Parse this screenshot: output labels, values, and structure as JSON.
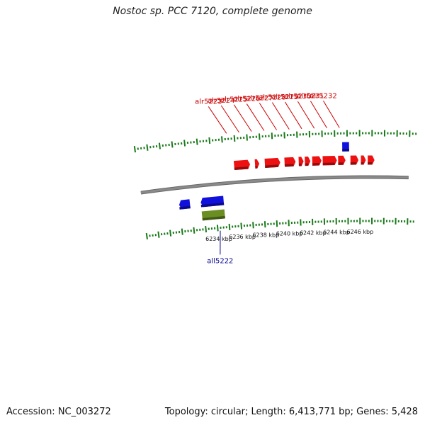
{
  "title": "Nostoc sp. PCC 7120, complete genome",
  "accession_text": "Accession: NC_003272",
  "summary_text": "Topology: circular; Length: 6,413,771 bp; Genes: 5,428",
  "colors": {
    "backbone": "#8a8a8a",
    "tick": "#1a7a1a",
    "forward_gene": "#ee1111",
    "reverse_gene": "#1111dd",
    "other_feature": "#6b8e23",
    "forward_label": "#cc0000",
    "reverse_label": "#00008b"
  },
  "axis": {
    "unit": "kbp",
    "tick_labels": [
      {
        "kbp": 6234,
        "text": "6234 kbp"
      },
      {
        "kbp": 6236,
        "text": "6236 kbp"
      },
      {
        "kbp": 6238,
        "text": "6238 kbp"
      },
      {
        "kbp": 6240,
        "text": "6240 kbp"
      },
      {
        "kbp": 6242,
        "text": "6242 kbp"
      },
      {
        "kbp": 6244,
        "text": "6244 kbp"
      },
      {
        "kbp": 6246,
        "text": "6246 kbp"
      }
    ]
  },
  "features": [
    {
      "track": "reverse-outer",
      "color": "reverse_gene",
      "start": 6231.0,
      "end": 6231.9,
      "dir": "rev"
    },
    {
      "track": "reverse-outer",
      "color": "reverse_gene",
      "start": 6232.8,
      "end": 6234.7,
      "dir": "rev"
    },
    {
      "track": "reverse-inner",
      "color": "other_feature",
      "start": 6232.8,
      "end": 6234.7,
      "dir": "none"
    },
    {
      "track": "forward-inner",
      "color": "forward_gene",
      "start": 6235.8,
      "end": 6237.1,
      "dir": "fwd"
    },
    {
      "track": "forward-inner",
      "color": "forward_gene",
      "start": 6237.5,
      "end": 6237.85,
      "dir": "fwd"
    },
    {
      "track": "forward-inner",
      "color": "forward_gene",
      "start": 6238.3,
      "end": 6239.55,
      "dir": "fwd"
    },
    {
      "track": "forward-inner",
      "color": "forward_gene",
      "start": 6239.9,
      "end": 6240.8,
      "dir": "fwd"
    },
    {
      "track": "forward-inner",
      "color": "forward_gene",
      "start": 6241.05,
      "end": 6241.45,
      "dir": "fwd"
    },
    {
      "track": "forward-inner",
      "color": "forward_gene",
      "start": 6241.55,
      "end": 6242.0,
      "dir": "fwd"
    },
    {
      "track": "forward-inner",
      "color": "forward_gene",
      "start": 6242.15,
      "end": 6242.9,
      "dir": "fwd"
    },
    {
      "track": "forward-inner",
      "color": "forward_gene",
      "start": 6243.0,
      "end": 6244.15,
      "dir": "fwd"
    },
    {
      "track": "forward-inner",
      "color": "forward_gene",
      "start": 6244.25,
      "end": 6244.85,
      "dir": "fwd"
    },
    {
      "track": "forward-inner",
      "color": "forward_gene",
      "start": 6245.25,
      "end": 6245.9,
      "dir": "fwd"
    },
    {
      "track": "forward-inner",
      "color": "forward_gene",
      "start": 6246.1,
      "end": 6246.5,
      "dir": "fwd"
    },
    {
      "track": "forward-inner",
      "color": "forward_gene",
      "start": 6246.65,
      "end": 6247.2,
      "dir": "fwd"
    },
    {
      "track": "forward-outer",
      "color": "reverse_gene",
      "start": 6244.6,
      "end": 6245.15,
      "dir": "none"
    }
  ],
  "gene_labels": [
    {
      "text": "all5222",
      "strand": "reverse",
      "kbp": 6234.2
    },
    {
      "text": "alr5223",
      "strand": "forward",
      "kbp": 6235.4
    },
    {
      "text": "alr5224",
      "strand": "forward",
      "kbp": 6236.4
    },
    {
      "text": "alr5225",
      "strand": "forward",
      "kbp": 6237.4
    },
    {
      "text": "alr5226",
      "strand": "forward",
      "kbp": 6238.4
    },
    {
      "text": "alr5227",
      "strand": "forward",
      "kbp": 6239.4
    },
    {
      "text": "alr5228",
      "strand": "forward",
      "kbp": 6240.4
    },
    {
      "text": "alr5229",
      "strand": "forward",
      "kbp": 6241.4
    },
    {
      "text": "alr5230",
      "strand": "forward",
      "kbp": 6242.4
    },
    {
      "text": "alr5231",
      "strand": "forward",
      "kbp": 6243.4
    },
    {
      "text": "alr5232",
      "strand": "forward",
      "kbp": 6244.4
    }
  ]
}
